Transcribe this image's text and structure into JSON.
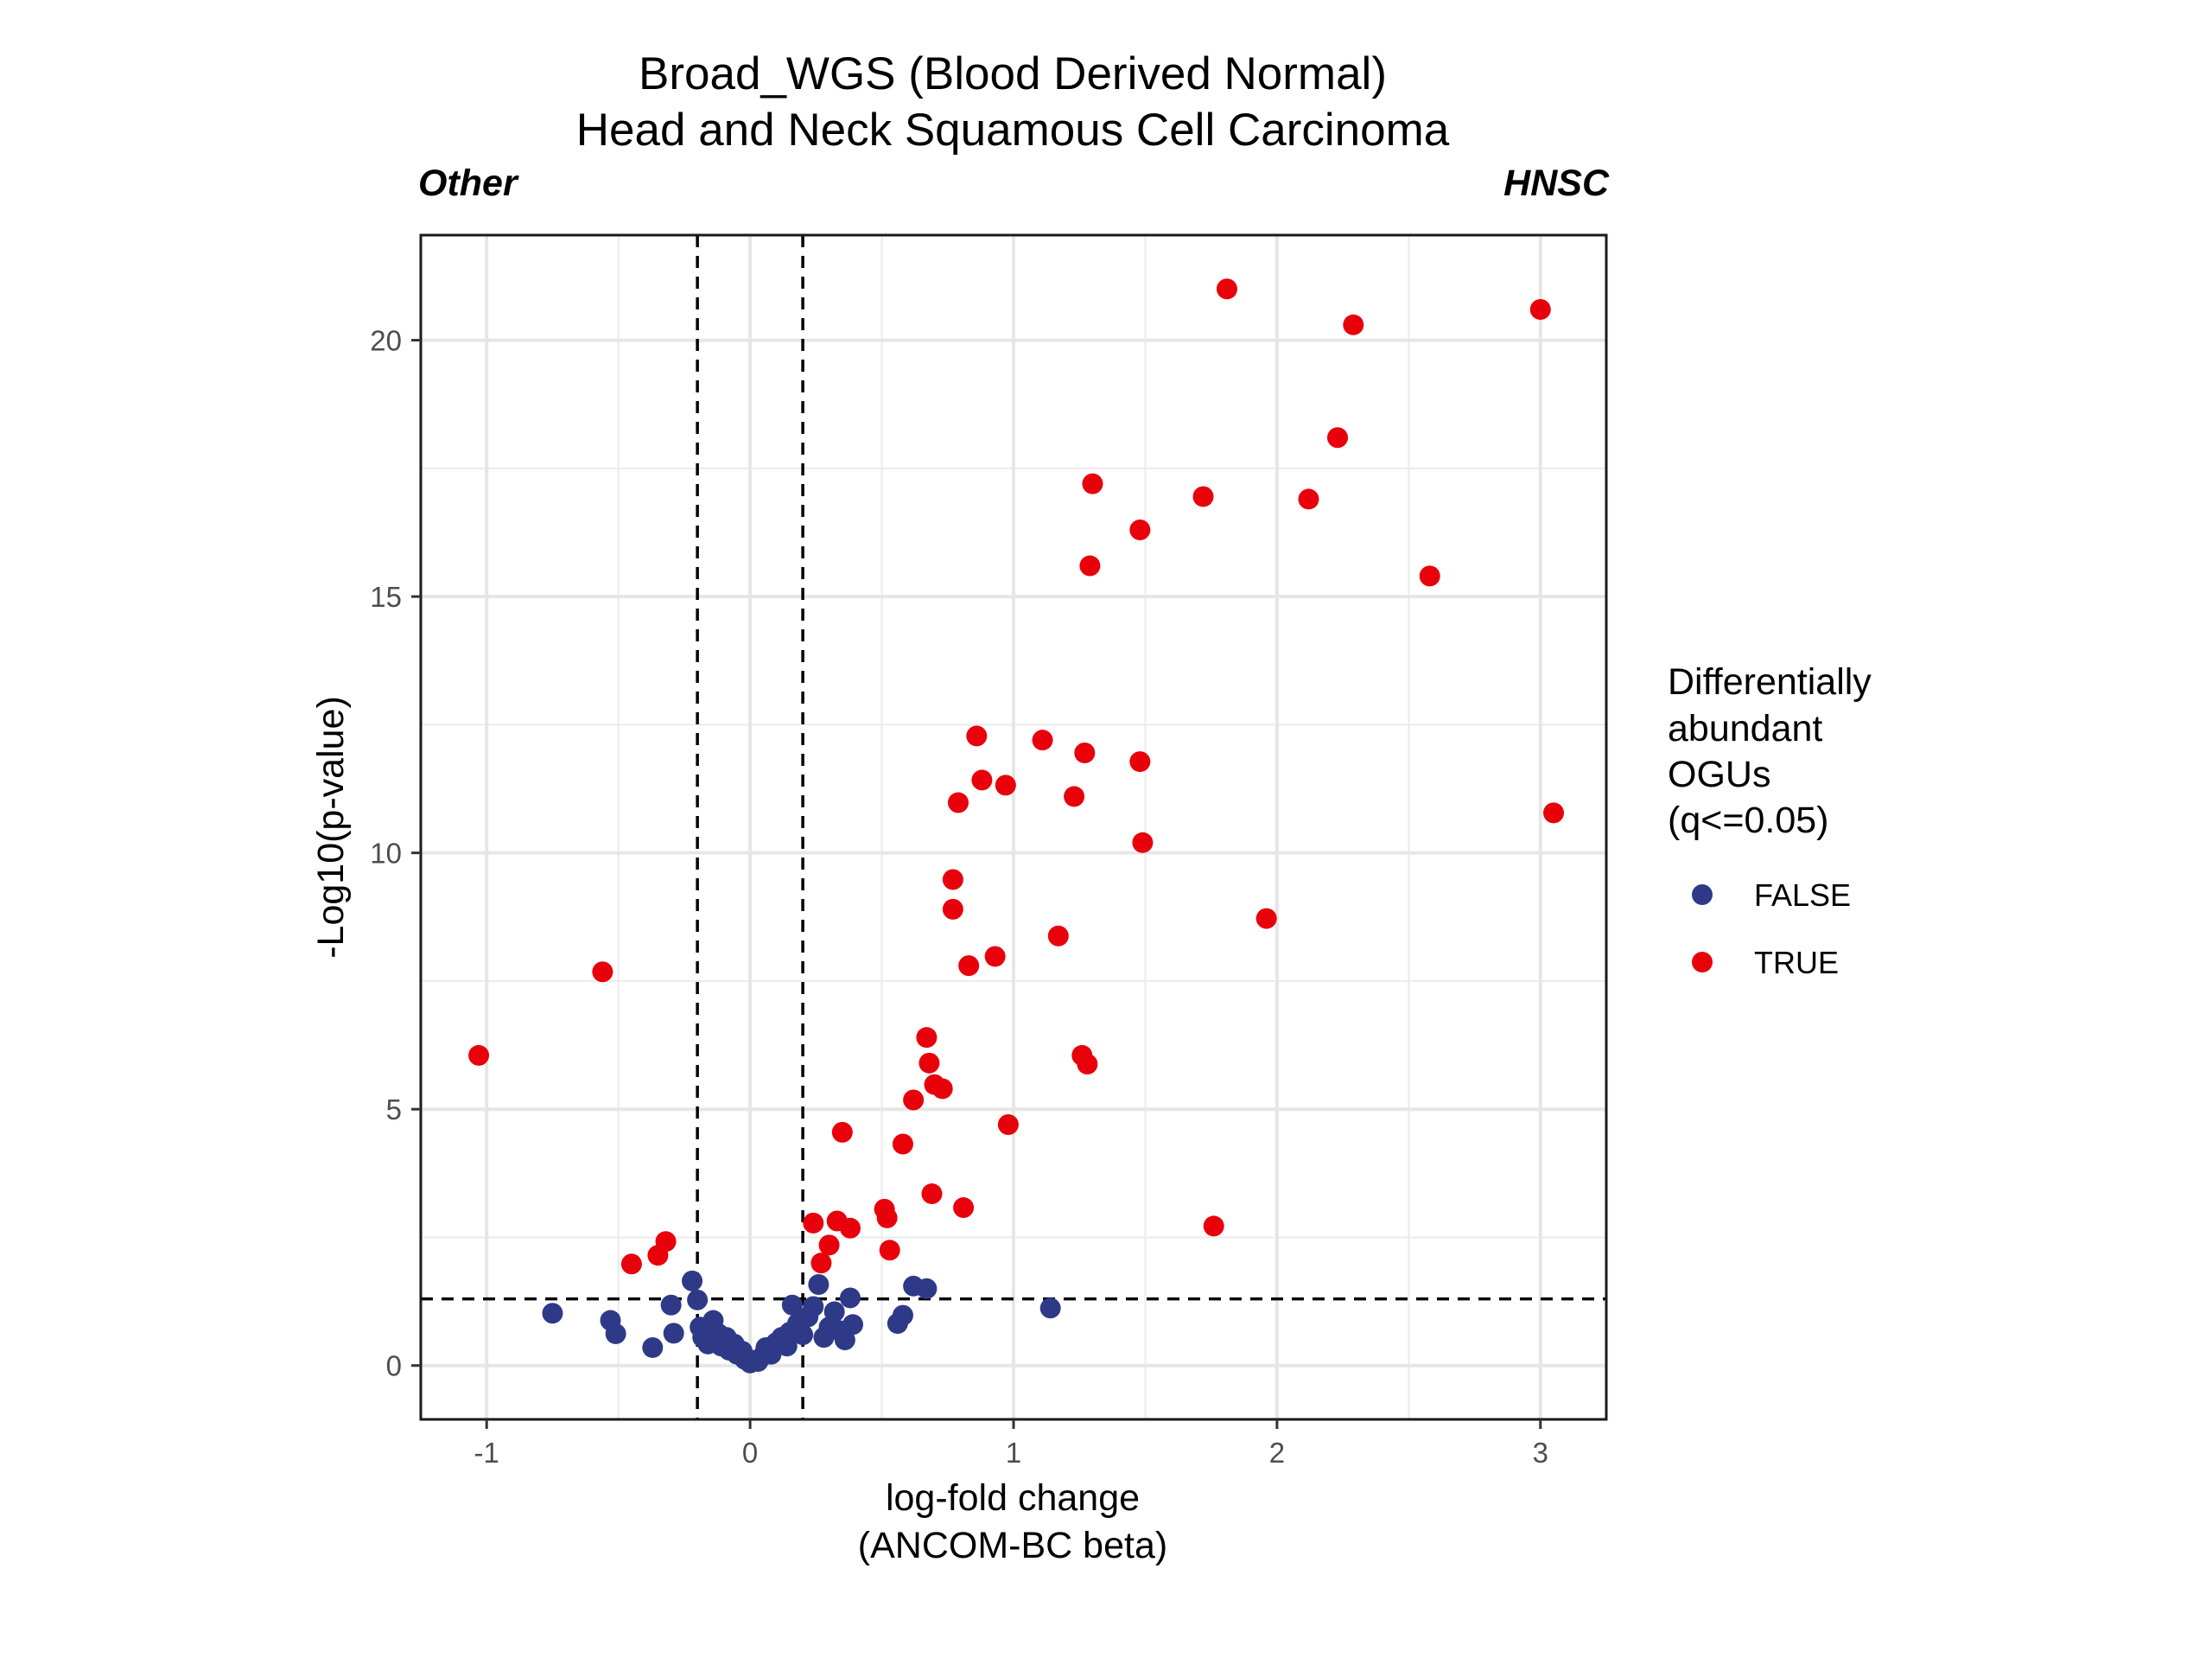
{
  "chart_data": {
    "type": "scatter",
    "title": "Broad_WGS (Blood Derived Normal)",
    "subtitle": "Head and Neck Squamous Cell Carcinoma",
    "left_label": "Other",
    "right_label": "HNSC",
    "xlabel": [
      "log-fold change",
      "(ANCOM-BC beta)"
    ],
    "ylabel": "-Log10(p-value)",
    "xlim": [
      -1.25,
      3.25
    ],
    "ylim": [
      -1.05,
      22.05
    ],
    "x_ticks": [
      -1,
      0,
      1,
      2,
      3
    ],
    "x_tick_labels": [
      "-1",
      "0",
      "1",
      "2",
      "3"
    ],
    "y_ticks": [
      0,
      5,
      10,
      15,
      20
    ],
    "y_tick_labels": [
      "0",
      "5",
      "10",
      "15",
      "20"
    ],
    "grid": true,
    "reference_lines": {
      "vertical": [
        -0.2,
        0.2
      ],
      "horizontal": [
        1.3
      ]
    },
    "legend": {
      "title": [
        "Differentially",
        "abundant",
        "OGUs",
        "(q<=0.05)"
      ],
      "position": "right",
      "entries": [
        {
          "label": "FALSE",
          "color": "#2E3A87"
        },
        {
          "label": "TRUE",
          "color": "#E8000B"
        }
      ]
    },
    "series": [
      {
        "name": "FALSE",
        "color": "#2E3A87",
        "points": [
          [
            -0.75,
            1.02
          ],
          [
            -0.53,
            0.88
          ],
          [
            -0.51,
            0.62
          ],
          [
            -0.37,
            0.35
          ],
          [
            -0.3,
            1.18
          ],
          [
            -0.29,
            0.63
          ],
          [
            -0.22,
            1.65
          ],
          [
            -0.2,
            1.28
          ],
          [
            -0.19,
            0.75
          ],
          [
            -0.18,
            0.55
          ],
          [
            -0.16,
            0.42
          ],
          [
            -0.14,
            0.88
          ],
          [
            -0.12,
            0.62
          ],
          [
            -0.11,
            0.38
          ],
          [
            -0.09,
            0.55
          ],
          [
            -0.08,
            0.3
          ],
          [
            -0.06,
            0.42
          ],
          [
            -0.05,
            0.22
          ],
          [
            -0.03,
            0.28
          ],
          [
            -0.02,
            0.12
          ],
          [
            0.0,
            0.05
          ],
          [
            0.01,
            0.1
          ],
          [
            0.03,
            0.08
          ],
          [
            0.05,
            0.2
          ],
          [
            0.06,
            0.35
          ],
          [
            0.08,
            0.22
          ],
          [
            0.1,
            0.45
          ],
          [
            0.12,
            0.55
          ],
          [
            0.14,
            0.38
          ],
          [
            0.15,
            0.65
          ],
          [
            0.16,
            1.18
          ],
          [
            0.18,
            0.82
          ],
          [
            0.2,
            0.6
          ],
          [
            0.22,
            0.95
          ],
          [
            0.24,
            1.15
          ],
          [
            0.26,
            1.58
          ],
          [
            0.28,
            0.55
          ],
          [
            0.3,
            0.75
          ],
          [
            0.32,
            1.05
          ],
          [
            0.34,
            0.68
          ],
          [
            0.36,
            0.5
          ],
          [
            0.38,
            1.32
          ],
          [
            0.39,
            0.8
          ],
          [
            0.56,
            0.82
          ],
          [
            0.58,
            0.98
          ],
          [
            0.62,
            1.55
          ],
          [
            0.67,
            1.5
          ],
          [
            1.14,
            1.12
          ]
        ]
      },
      {
        "name": "TRUE",
        "color": "#E8000B",
        "points": [
          [
            -1.03,
            6.05
          ],
          [
            -0.56,
            7.68
          ],
          [
            -0.45,
            1.98
          ],
          [
            -0.35,
            2.15
          ],
          [
            -0.32,
            2.42
          ],
          [
            0.24,
            2.78
          ],
          [
            0.27,
            2.0
          ],
          [
            0.3,
            2.35
          ],
          [
            0.33,
            2.82
          ],
          [
            0.35,
            4.55
          ],
          [
            0.38,
            2.68
          ],
          [
            0.51,
            3.05
          ],
          [
            0.52,
            2.88
          ],
          [
            0.53,
            2.25
          ],
          [
            0.58,
            4.32
          ],
          [
            0.62,
            5.18
          ],
          [
            0.67,
            6.4
          ],
          [
            0.68,
            5.9
          ],
          [
            0.69,
            3.35
          ],
          [
            0.7,
            5.48
          ],
          [
            0.73,
            5.4
          ],
          [
            0.77,
            9.48
          ],
          [
            0.77,
            8.9
          ],
          [
            0.79,
            10.98
          ],
          [
            0.81,
            3.08
          ],
          [
            0.83,
            7.8
          ],
          [
            0.86,
            12.28
          ],
          [
            0.88,
            11.42
          ],
          [
            0.93,
            7.98
          ],
          [
            0.97,
            11.32
          ],
          [
            0.98,
            4.7
          ],
          [
            1.11,
            12.2
          ],
          [
            1.17,
            8.38
          ],
          [
            1.23,
            11.1
          ],
          [
            1.26,
            6.05
          ],
          [
            1.27,
            11.95
          ],
          [
            1.28,
            5.88
          ],
          [
            1.29,
            15.6
          ],
          [
            1.3,
            17.2
          ],
          [
            1.48,
            11.78
          ],
          [
            1.48,
            16.3
          ],
          [
            1.49,
            10.2
          ],
          [
            1.72,
            16.95
          ],
          [
            1.76,
            2.72
          ],
          [
            1.81,
            21.0
          ],
          [
            1.96,
            8.72
          ],
          [
            2.12,
            16.9
          ],
          [
            2.23,
            18.1
          ],
          [
            2.29,
            20.3
          ],
          [
            2.58,
            15.4
          ],
          [
            3.0,
            20.6
          ],
          [
            3.05,
            10.78
          ]
        ]
      }
    ]
  }
}
